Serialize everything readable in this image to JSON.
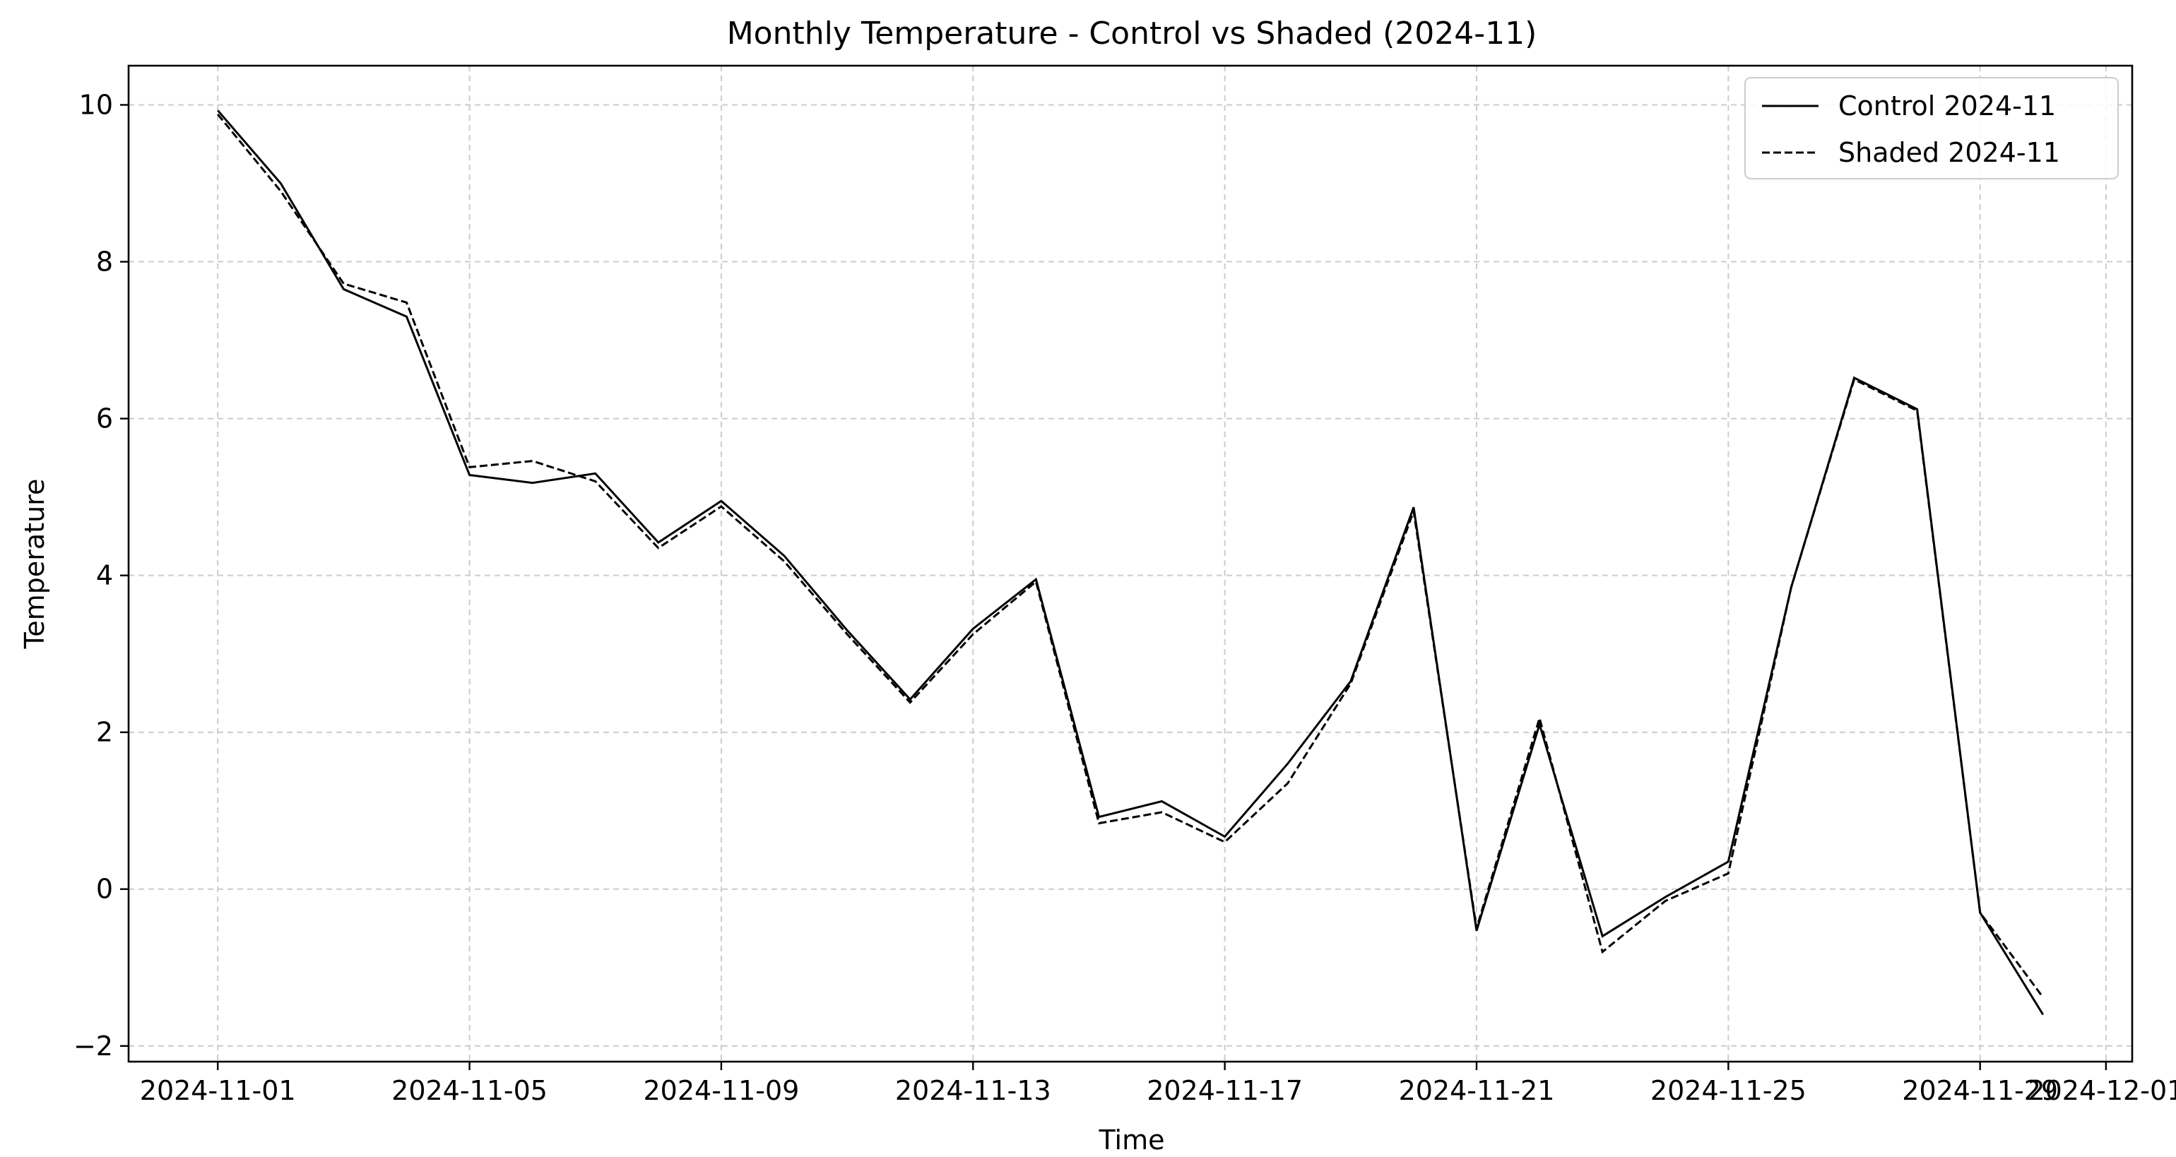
{
  "chart_data": {
    "type": "line",
    "title": "Monthly Temperature - Control vs Shaded (2024-11)",
    "xlabel": "Time",
    "ylabel": "Temperature",
    "x": [
      "2024-11-01",
      "2024-11-02",
      "2024-11-03",
      "2024-11-04",
      "2024-11-05",
      "2024-11-06",
      "2024-11-07",
      "2024-11-08",
      "2024-11-09",
      "2024-11-10",
      "2024-11-11",
      "2024-11-12",
      "2024-11-13",
      "2024-11-14",
      "2024-11-15",
      "2024-11-16",
      "2024-11-17",
      "2024-11-18",
      "2024-11-19",
      "2024-11-20",
      "2024-11-21",
      "2024-11-22",
      "2024-11-23",
      "2024-11-24",
      "2024-11-25",
      "2024-11-26",
      "2024-11-27",
      "2024-11-28",
      "2024-11-29",
      "2024-11-30"
    ],
    "series": [
      {
        "name": "Control 2024-11",
        "style": "solid",
        "values": [
          9.93,
          9.0,
          7.65,
          7.3,
          5.28,
          5.18,
          5.3,
          4.42,
          4.95,
          4.25,
          3.3,
          2.42,
          3.32,
          3.95,
          0.92,
          1.12,
          0.67,
          1.6,
          2.65,
          4.87,
          -0.53,
          2.1,
          -0.6,
          -0.1,
          0.35,
          3.85,
          6.52,
          6.12,
          -0.3,
          -1.6
        ]
      },
      {
        "name": "Shaded 2024-11",
        "style": "dashed",
        "values": [
          9.88,
          8.9,
          7.72,
          7.48,
          5.38,
          5.46,
          5.2,
          4.35,
          4.88,
          4.18,
          3.25,
          2.38,
          3.25,
          3.92,
          0.84,
          0.98,
          0.6,
          1.35,
          2.62,
          4.82,
          -0.5,
          2.18,
          -0.8,
          -0.15,
          0.2,
          3.85,
          6.5,
          6.1,
          -0.3,
          -1.38
        ]
      }
    ],
    "xticks": [
      "2024-11-01",
      "2024-11-05",
      "2024-11-09",
      "2024-11-13",
      "2024-11-17",
      "2024-11-21",
      "2024-11-25",
      "2024-11-29",
      "2024-12-01"
    ],
    "yticks": [
      -2,
      0,
      2,
      4,
      6,
      8,
      10
    ],
    "xlim": [
      "2024-10-30T14:00",
      "2024-12-01T10:00"
    ],
    "ylim": [
      -2.2,
      10.5
    ],
    "grid": true,
    "legend_position": "top-right",
    "line_color": "#000000",
    "grid_color": "#cccccc"
  }
}
